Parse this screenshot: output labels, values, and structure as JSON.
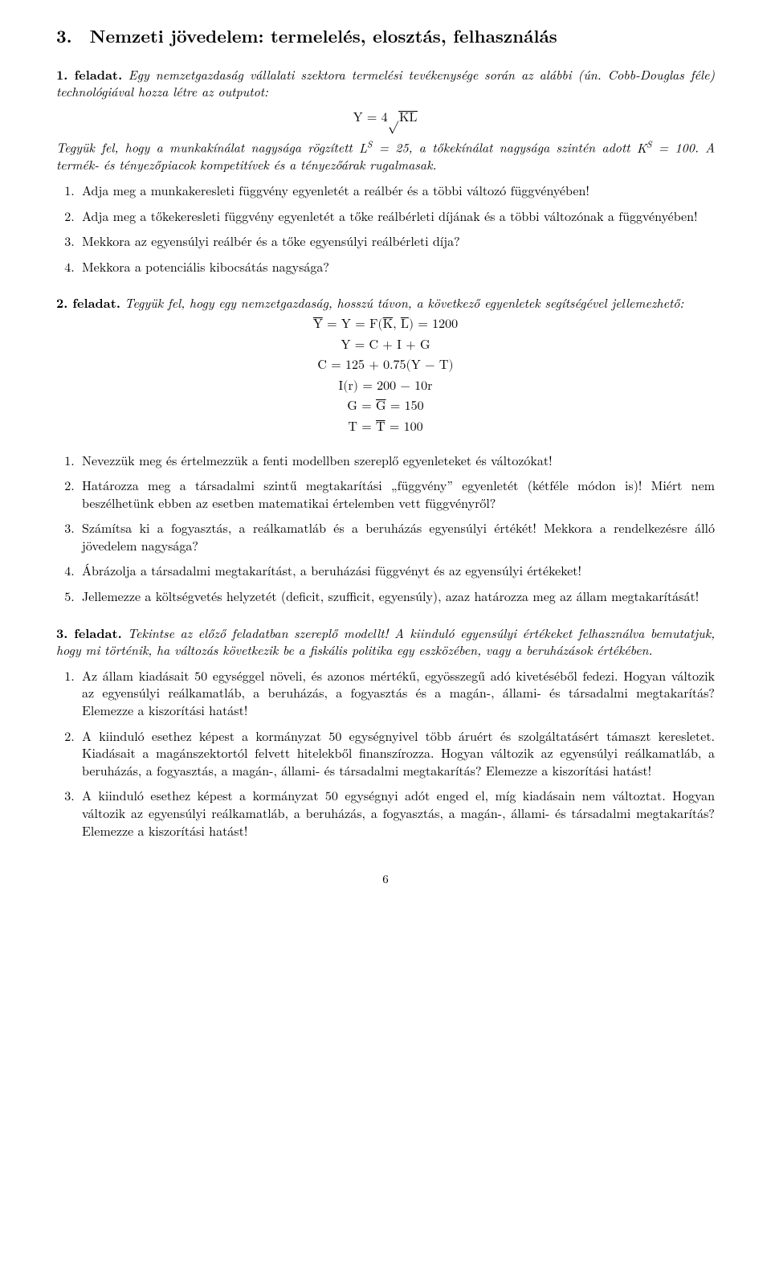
{
  "heading": "3. Nemzeti jövedelem: termelelés, elosztás, felhasználás",
  "t1": {
    "label": "1. feladat.",
    "lead": "Egy nemzetgazdaság vállalati szektora termelési tevékenysége során az alábbi (ún. Cobb-Douglas féle) technológiával hozza létre az outputot:",
    "eq_lhs": "Y = 4",
    "eq_rad": "KL",
    "cond_a": "Tegyük fel, hogy a munkakínálat nagysága rögzített ",
    "cond_ls": "L",
    "cond_ls_sup": "S",
    "cond_b": " = 25, a tőkekínálat nagysága szintén adott ",
    "cond_ks": "K",
    "cond_ks_sup": "S",
    "cond_c": " = 100. A termék- és tényezőpiacok kompetitívek és a tényezőárak rugalmasak.",
    "q1": "Adja meg a munkakeresleti függvény egyenletét a reálbér és a többi változó függvényében!",
    "q2": "Adja meg a tőkekeresleti függvény egyenletét a tőke reálbérleti díjának és a többi változónak a függvényében!",
    "q3": "Mekkora az egyensúlyi reálbér és a tőke egyensúlyi reálbérleti díja?",
    "q4": "Mekkora a potenciális kibocsátás nagysága?"
  },
  "t2": {
    "label": "2. feladat.",
    "lead": "Tegyük fel, hogy egy nemzetgazdaság, hosszú távon, a következő egyenletek segítségével jellemezhető:",
    "e1a": "Y",
    "e1b": " = Y = F(",
    "e1c": "K",
    "e1d": ", ",
    "e1e": "L",
    "e1f": ") = 1200",
    "e2": "Y = C + I + G",
    "e3": "C = 125 + 0.75(Y − T)",
    "e4": "I(r) = 200 − 10r",
    "e5a": "G = ",
    "e5b": "G",
    "e5c": " = 150",
    "e6a": "T = ",
    "e6b": "T",
    "e6c": " = 100",
    "q1": "Nevezzük meg és értelmezzük a fenti modellben szereplő egyenleteket és változókat!",
    "q2": "Határozza meg a társadalmi szintű megtakarítási „függvény” egyenletét (kétféle módon is)! Miért nem beszélhetünk ebben az esetben matematikai értelemben vett függvényről?",
    "q3": "Számítsa ki a fogyasztás, a reálkamatláb és a beruházás egyensúlyi értékét! Mekkora a rendelkezésre álló jövedelem nagysága?",
    "q4": "Ábrázolja a társadalmi megtakarítást, a beruházási függvényt és az egyensúlyi értékeket!",
    "q5": "Jellemezze a költségvetés helyzetét (deficit, szufficit, egyensúly), azaz határozza meg az állam megtakarítását!"
  },
  "t3": {
    "label": "3. feladat.",
    "lead": "Tekintse az előző feladatban szereplő modellt! A kiinduló egyensúlyi értékeket felhasználva bemutatjuk, hogy mi történik, ha változás következik be a fiskális politika egy eszközében, vagy a beruházások értékében.",
    "q1": "Az állam kiadásait 50 egységgel növeli, és azonos mértékű, egyösszegű adó kivetéséből fedezi. Hogyan változik az egyensúlyi reálkamatláb, a beruházás, a fogyasztás és a magán-, állami- és társadalmi megtakarítás? Elemezze a kiszorítási hatást!",
    "q2": "A kiinduló esethez képest a kormányzat 50 egységnyivel több áruért és szolgáltatásért támaszt keresletet. Kiadásait a magánszektortól felvett hitelekből finanszírozza. Hogyan változik az egyensúlyi reálkamatláb, a beruházás, a fogyasztás, a magán-, állami- és társadalmi megtakarítás? Elemezze a kiszorítási hatást!",
    "q3": "A kiinduló esethez képest a kormányzat 50 egységnyi adót enged el, míg kiadásain nem változtat. Hogyan változik az egyensúlyi reálkamatláb, a beruházás, a fogyasztás, a magán-, állami- és társadalmi megtakarítás? Elemezze a kiszorítási hatást!"
  },
  "pagenum": "6"
}
